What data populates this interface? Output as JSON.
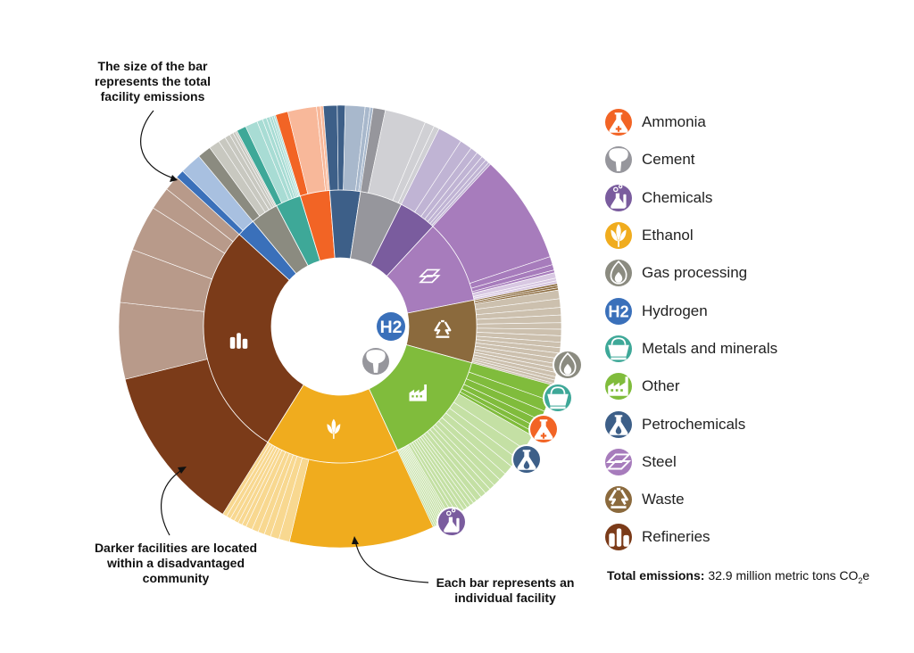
{
  "chart_data": {
    "type": "sunburst",
    "inner_ring": "sector",
    "outer_ring": "facility",
    "sectors": [
      {
        "name": "Refineries",
        "color": "#7B3B19",
        "light": "#B89A8A",
        "icon": "refinery-icon",
        "share": 0.279,
        "facilities_light": [
          20,
          14,
          12,
          6,
          4
        ],
        "facilities_dark": [
          44
        ]
      },
      {
        "name": "Hydrogen",
        "color": "#3A70BA",
        "light": "#A8C0E0",
        "icon": "h2-icon",
        "share": 0.022,
        "facilities_light": [
          72
        ],
        "facilities_dark": [
          28
        ]
      },
      {
        "name": "Gas processing",
        "color": "#8B8B80",
        "light": "#C8C8C0",
        "icon": "gas-processing-icon",
        "share": 0.033,
        "facilities_light": [
          24,
          16,
          12,
          8,
          6,
          4
        ],
        "facilities_dark": [
          30
        ]
      },
      {
        "name": "Metals and minerals",
        "color": "#3EA898",
        "light": "#A8DCD4",
        "icon": "metals-icon",
        "share": 0.03,
        "facilities_light": [
          30,
          14,
          10,
          8,
          6,
          5,
          4
        ],
        "facilities_dark": [
          23
        ]
      },
      {
        "name": "Ammonia",
        "color": "#F26425",
        "light": "#F8B89A",
        "icon": "ammonia-icon",
        "share": 0.035,
        "facilities_light": [
          60,
          8,
          6
        ],
        "facilities_dark": [
          26
        ]
      },
      {
        "name": "Petrochemicals",
        "color": "#3D5F88",
        "light": "#A8B8CC",
        "icon": "petrochemicals-icon",
        "share": 0.036,
        "facilities_light": [
          40,
          10,
          6
        ],
        "facilities_dark": [
          28,
          16
        ]
      },
      {
        "name": "Cement",
        "color": "#96969C",
        "light": "#D0D0D4",
        "icon": "cement-icon",
        "share": 0.05,
        "facilities_light": [
          60,
          14,
          8
        ],
        "facilities_dark": [
          18
        ]
      },
      {
        "name": "Chemicals",
        "color": "#7A5C9E",
        "light": "#C0B4D4",
        "icon": "chemicals-icon",
        "share": 0.045,
        "facilities_light": [
          40,
          20,
          12,
          10,
          8,
          6,
          4
        ],
        "facilities_dark": []
      },
      {
        "name": "Steel",
        "color": "#A77CBC",
        "light": "#D8C8E2",
        "icon": "steel-icon",
        "share": 0.1,
        "facilities_light": [
          4,
          2,
          2
        ],
        "facilities_dark": [
          80,
          6,
          4,
          2
        ]
      },
      {
        "name": "Waste",
        "color": "#8B6A3D",
        "light": "#CCC0AE",
        "icon": "waste-icon",
        "share": 0.074,
        "facilities_light": [
          8,
          8,
          7,
          7,
          6,
          6,
          6,
          5,
          5,
          5,
          5,
          4,
          4,
          4,
          3,
          3,
          2
        ],
        "facilities_dark": [
          2,
          2,
          2
        ]
      },
      {
        "name": "Other",
        "color": "#80BC3C",
        "light": "#C4E0A4",
        "icon": "other-icon",
        "share": 0.138,
        "facilities_light": [
          8,
          6,
          5,
          5,
          4,
          4,
          3,
          3,
          3,
          3,
          2,
          2,
          2,
          2,
          2,
          2,
          2,
          2,
          1,
          1,
          1,
          1,
          1,
          1,
          1,
          1,
          1,
          1
        ],
        "facilities_dark": [
          8,
          6,
          5,
          4,
          3,
          2
        ]
      },
      {
        "name": "Ethanol",
        "color": "#F0AC1E",
        "light": "#F8D890",
        "icon": "ethanol-icon",
        "share": 0.158,
        "facilities_light": [
          5,
          4,
          3,
          3,
          3,
          3,
          2,
          2,
          2,
          2,
          2,
          2
        ],
        "facilities_dark": [
          67
        ]
      }
    ],
    "legend_order": [
      "Ammonia",
      "Cement",
      "Chemicals",
      "Ethanol",
      "Gas processing",
      "Hydrogen",
      "Metals and minerals",
      "Other",
      "Petrochemicals",
      "Steel",
      "Waste",
      "Refineries"
    ],
    "outside_icons": [
      "gas-processing-icon",
      "metals-icon",
      "ammonia-icon",
      "petrochemicals-icon",
      "chemicals-icon"
    ],
    "legend_placement": "right"
  },
  "annotations": {
    "bar_size": [
      "The size of the bar",
      "represents the total",
      "facility emissions"
    ],
    "darker": [
      "Darker facilities are located",
      "within a disadvantaged",
      "community"
    ],
    "each_bar": [
      "Each bar represents an",
      "individual facility"
    ]
  },
  "total": {
    "label": "Total emissions:",
    "value": "32.9 million metric tons CO",
    "sub": "2",
    "suffix": "e"
  },
  "icon_text": {
    "hydrogen": "H2"
  }
}
